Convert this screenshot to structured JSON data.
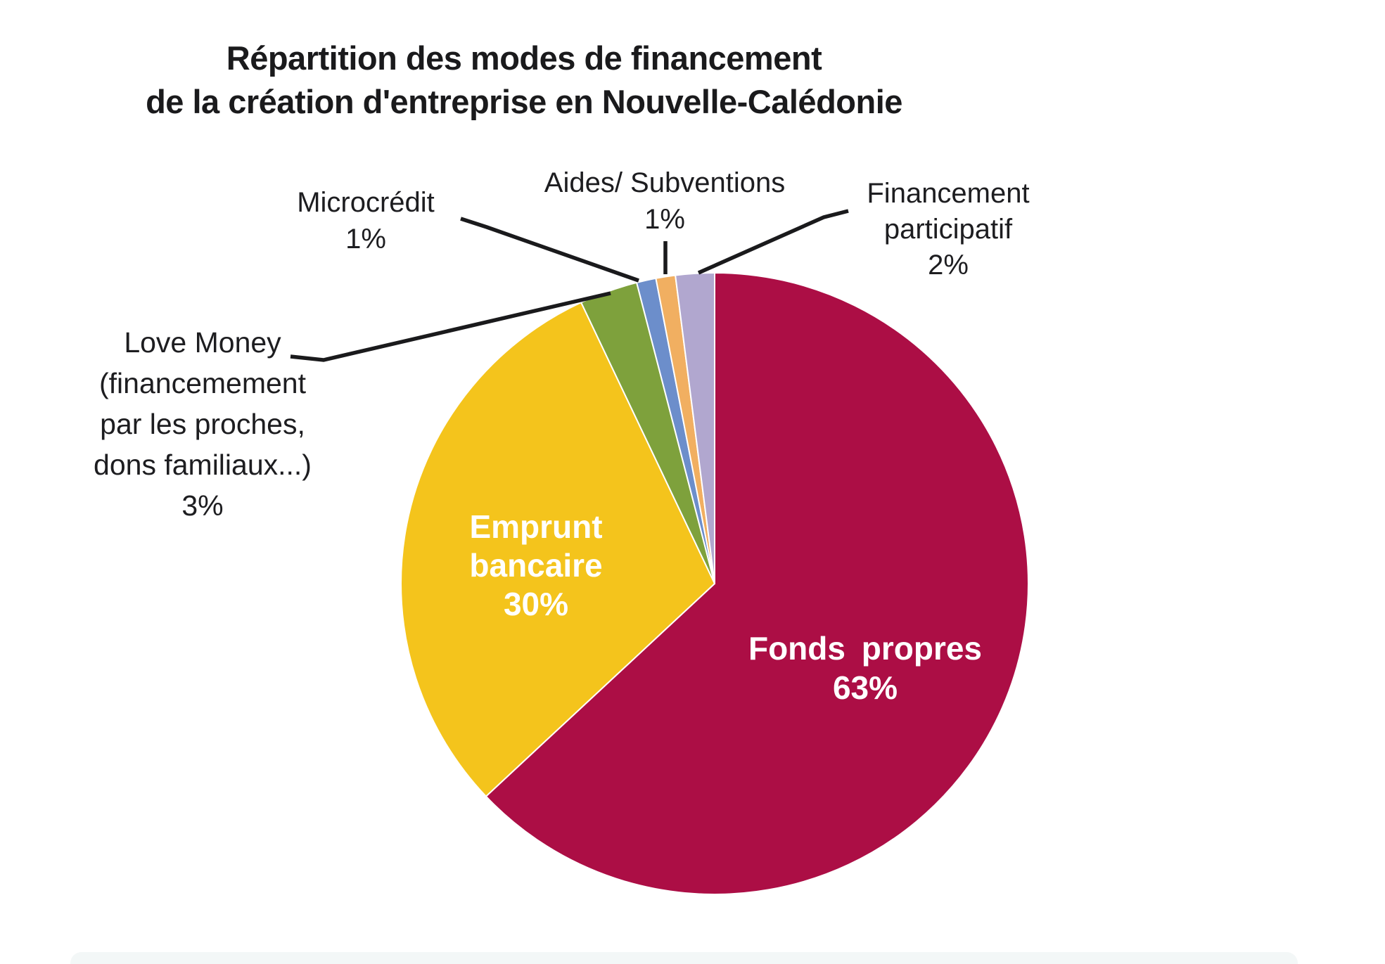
{
  "title": {
    "line1": "Répartition des modes de financement",
    "line2": "de la création d'entreprise en Nouvelle-Calédonie"
  },
  "chart_data": {
    "type": "pie",
    "title": "Répartition des modes de financement de la création d'entreprise en Nouvelle-Calédonie",
    "start_angle_deg": 0,
    "direction": "clockwise",
    "legend_position": "none",
    "slices": [
      {
        "label": "Fonds propres",
        "value_pct": 63,
        "color": "#AC0E45",
        "label_style": "inside"
      },
      {
        "label": "Emprunt bancaire",
        "value_pct": 30,
        "color": "#F4C41C",
        "label_style": "inside"
      },
      {
        "label": "Love Money (financemement par les proches, dons familiaux...)",
        "value_pct": 3,
        "color": "#7EA13C",
        "label_style": "callout"
      },
      {
        "label": "Microcrédit",
        "value_pct": 1,
        "color": "#6C8ECB",
        "label_style": "callout"
      },
      {
        "label": "Aides/ Subventions",
        "value_pct": 1,
        "color": "#F1AF61",
        "label_style": "callout"
      },
      {
        "label": "Financement participatif",
        "value_pct": 2,
        "color": "#B1A7CF",
        "label_style": "callout"
      }
    ]
  },
  "labels": {
    "fonds": "Fonds propres\n63%",
    "emprunt": "Emprunt\nbancaire\n30%",
    "lovemoney": "Love Money\n(financemement\npar les proches,\ndons familiaux...)\n3%",
    "microcredit": "Microcrédit\n1%",
    "aides": "Aides/ Subventions\n1%",
    "financement": "Financement\nparticipatif\n2%"
  },
  "colors": {
    "fonds_propres": "#AC0E45",
    "emprunt_bancaire": "#F4C41C",
    "love_money": "#7EA13C",
    "microcredit": "#6C8ECB",
    "aides_subventions": "#F1AF61",
    "financement_participatif": "#B1A7CF",
    "leader_line": "#1a1a1c",
    "text": "#1d1d20"
  }
}
